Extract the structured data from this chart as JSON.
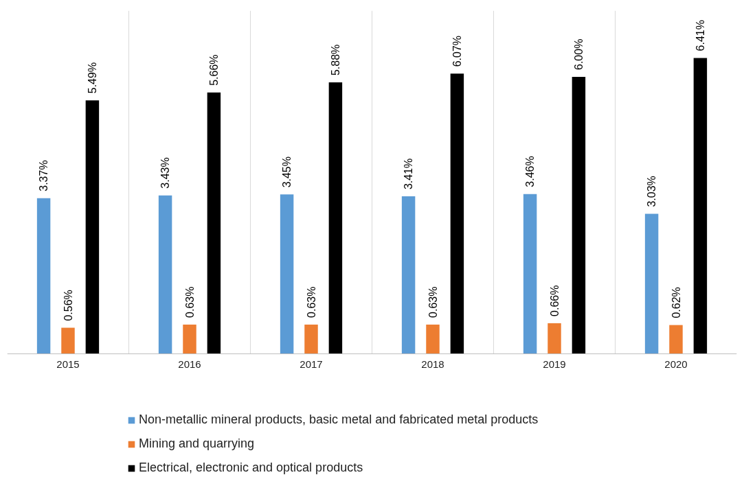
{
  "chart_data": {
    "type": "bar",
    "categories": [
      "2015",
      "2016",
      "2017",
      "2018",
      "2019",
      "2020"
    ],
    "series": [
      {
        "name": "Non-metallic mineral products, basic metal and fabricated metal products",
        "color": "#5b9bd5",
        "values": [
          3.37,
          3.43,
          3.45,
          3.41,
          3.46,
          3.03
        ],
        "value_labels": [
          "3.37%",
          "3.43%",
          "3.45%",
          "3.41%",
          "3.46%",
          "3.03%"
        ]
      },
      {
        "name": "Mining and quarrying",
        "color": "#ed7d31",
        "values": [
          0.56,
          0.63,
          0.63,
          0.63,
          0.66,
          0.62
        ],
        "value_labels": [
          "0.56%",
          "0.63%",
          "0.63%",
          "0.63%",
          "0.66%",
          "0.62%"
        ]
      },
      {
        "name": "Electrical, electronic and optical products",
        "color": "#000000",
        "values": [
          5.49,
          5.66,
          5.88,
          6.07,
          6.0,
          6.41
        ],
        "value_labels": [
          "5.49%",
          "5.66%",
          "5.88%",
          "6.07%",
          "6.00%",
          "6.41%"
        ]
      }
    ],
    "grid": "x",
    "legend": "bottom",
    "tick_labels": "x"
  }
}
